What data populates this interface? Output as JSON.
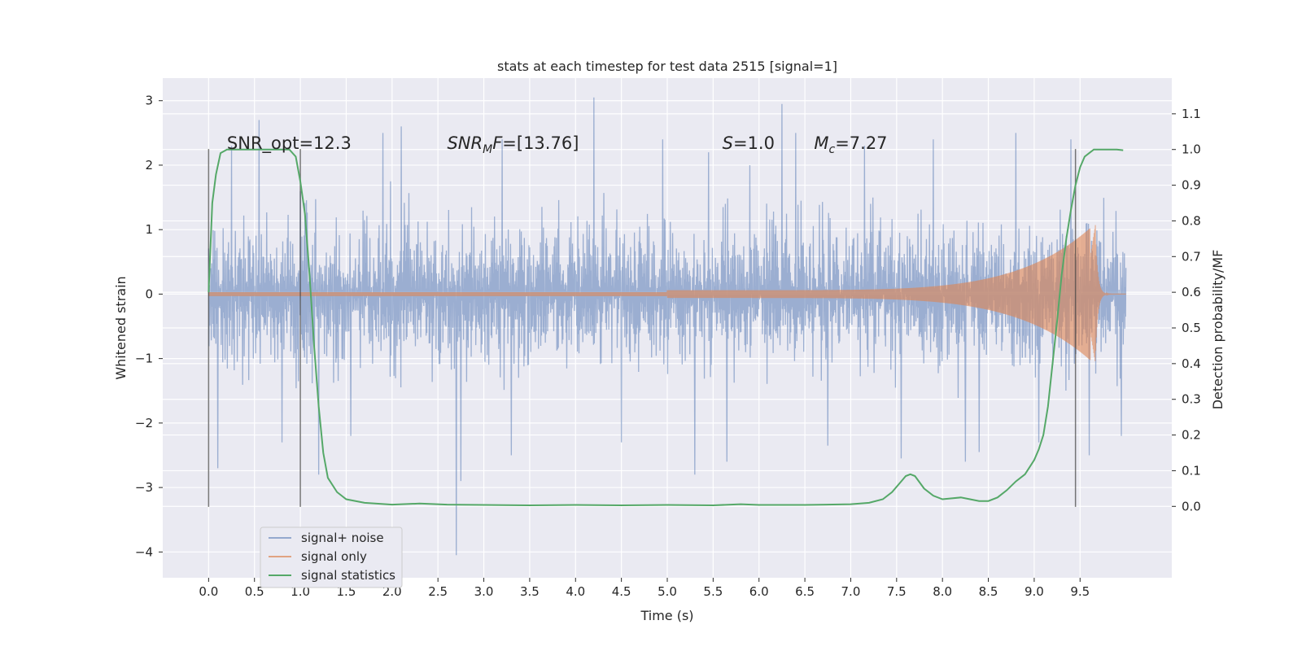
{
  "chart_data": {
    "type": "line",
    "title": "stats at each timestep for test data 2515 [signal=1]",
    "xlabel": "Time (s)",
    "ylabel": "Whitened strain",
    "y2label": "Detection probability/MF",
    "xlim": [
      -0.5,
      10.5
    ],
    "ylim": [
      -4.4,
      3.35
    ],
    "y2lim": [
      -0.2,
      1.2
    ],
    "xticks": [
      "0.0",
      "0.5",
      "1.0",
      "1.5",
      "2.0",
      "2.5",
      "3.0",
      "3.5",
      "4.0",
      "4.5",
      "5.0",
      "5.5",
      "6.0",
      "6.5",
      "7.0",
      "7.5",
      "8.0",
      "8.5",
      "9.0",
      "9.5"
    ],
    "yticks": [
      -4,
      -3,
      -2,
      -1,
      0,
      1,
      2,
      3
    ],
    "y2ticks": [
      "0.0",
      "0.1",
      "0.2",
      "0.3",
      "0.4",
      "0.5",
      "0.6",
      "0.7",
      "0.8",
      "0.9",
      "1.0",
      "1.1"
    ],
    "grid": true,
    "legend_position": "bottom-left",
    "annotations": [
      {
        "text": "SNR_opt=12.3",
        "x": 0.2,
        "y": 2.25
      },
      {
        "text": "SNR_MF=[13.76]",
        "x": 2.6,
        "y": 2.25
      },
      {
        "text": "S=1.0",
        "x": 5.6,
        "y": 2.25
      },
      {
        "text": "M_c=7.27",
        "x": 6.6,
        "y": 2.25
      }
    ],
    "vertical_lines": [
      0.0,
      1.0,
      9.45
    ],
    "series": [
      {
        "name": "signal+ noise",
        "color": "#4c72b0",
        "kind": "noise",
        "x_range": [
          0.0,
          10.0
        ],
        "envelope": 1.0,
        "peaks": [
          [
            0.25,
            2.3
          ],
          [
            0.55,
            2.7
          ],
          [
            0.1,
            -2.7
          ],
          [
            0.8,
            -2.3
          ],
          [
            1.2,
            -2.8
          ],
          [
            1.55,
            -2.2
          ],
          [
            1.9,
            2.5
          ],
          [
            2.1,
            2.6
          ],
          [
            2.7,
            -4.05
          ],
          [
            2.75,
            -2.9
          ],
          [
            3.2,
            2.4
          ],
          [
            3.3,
            -2.5
          ],
          [
            4.2,
            3.05
          ],
          [
            4.5,
            -2.3
          ],
          [
            4.95,
            2.4
          ],
          [
            5.3,
            -2.8
          ],
          [
            5.45,
            2.2
          ],
          [
            5.65,
            -2.6
          ],
          [
            5.9,
            2.0
          ],
          [
            6.25,
            2.95
          ],
          [
            6.4,
            2.5
          ],
          [
            6.75,
            -2.35
          ],
          [
            7.15,
            2.3
          ],
          [
            7.55,
            -2.55
          ],
          [
            7.9,
            2.4
          ],
          [
            8.25,
            -2.6
          ],
          [
            8.4,
            -2.45
          ],
          [
            8.8,
            2.5
          ],
          [
            9.05,
            -2.3
          ],
          [
            9.4,
            2.4
          ],
          [
            9.6,
            -2.5
          ],
          [
            9.95,
            -2.2
          ]
        ]
      },
      {
        "name": "signal only",
        "color": "#dd8452",
        "kind": "chirp",
        "x_range": [
          0.0,
          10.0
        ],
        "merger_time": 9.67,
        "peak_amplitude": 1.1
      },
      {
        "name": "signal statistics",
        "color": "#55a868",
        "kind": "line",
        "axis": "right",
        "x": [
          0.0,
          0.04,
          0.08,
          0.13,
          0.2,
          0.3,
          0.4,
          0.5,
          0.6,
          0.7,
          0.8,
          0.88,
          0.95,
          1.0,
          1.05,
          1.1,
          1.15,
          1.2,
          1.25,
          1.3,
          1.4,
          1.5,
          1.7,
          2.0,
          2.3,
          2.6,
          3.0,
          3.5,
          4.0,
          4.5,
          5.0,
          5.5,
          5.8,
          6.0,
          6.5,
          7.0,
          7.2,
          7.35,
          7.45,
          7.55,
          7.6,
          7.65,
          7.7,
          7.8,
          7.9,
          8.0,
          8.2,
          8.3,
          8.4,
          8.5,
          8.6,
          8.7,
          8.8,
          8.9,
          9.0,
          9.05,
          9.1,
          9.15,
          9.2,
          9.25,
          9.3,
          9.35,
          9.4,
          9.45,
          9.5,
          9.55,
          9.6,
          9.65,
          9.7,
          9.8,
          9.9,
          9.97
        ],
        "y": [
          0.6,
          0.85,
          0.93,
          0.99,
          1.0,
          1.0,
          1.0,
          1.0,
          1.0,
          1.0,
          1.0,
          1.0,
          0.98,
          0.91,
          0.82,
          0.65,
          0.45,
          0.28,
          0.15,
          0.08,
          0.04,
          0.02,
          0.01,
          0.005,
          0.008,
          0.005,
          0.004,
          0.003,
          0.004,
          0.003,
          0.004,
          0.003,
          0.006,
          0.004,
          0.004,
          0.006,
          0.01,
          0.02,
          0.04,
          0.07,
          0.085,
          0.09,
          0.085,
          0.05,
          0.03,
          0.02,
          0.025,
          0.02,
          0.015,
          0.015,
          0.025,
          0.045,
          0.07,
          0.09,
          0.13,
          0.16,
          0.2,
          0.28,
          0.4,
          0.52,
          0.65,
          0.75,
          0.83,
          0.9,
          0.95,
          0.98,
          0.99,
          1.0,
          1.0,
          1.0,
          1.0,
          0.998
        ]
      }
    ]
  }
}
